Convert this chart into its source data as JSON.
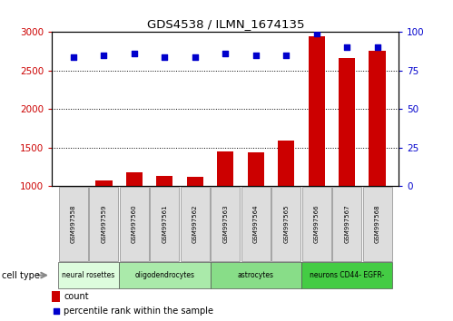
{
  "title": "GDS4538 / ILMN_1674135",
  "samples": [
    "GSM997558",
    "GSM997559",
    "GSM997560",
    "GSM997561",
    "GSM997562",
    "GSM997563",
    "GSM997564",
    "GSM997565",
    "GSM997566",
    "GSM997567",
    "GSM997568"
  ],
  "counts": [
    1005,
    1075,
    1185,
    1130,
    1125,
    1455,
    1445,
    1590,
    2950,
    2660,
    2760
  ],
  "percentiles": [
    84,
    85,
    86,
    84,
    84,
    86,
    85,
    85,
    99,
    90,
    90
  ],
  "bar_color": "#cc0000",
  "dot_color": "#0000cc",
  "ylim_left": [
    1000,
    3000
  ],
  "ylim_right": [
    0,
    100
  ],
  "yticks_left": [
    1000,
    1500,
    2000,
    2500,
    3000
  ],
  "yticks_right": [
    0,
    25,
    50,
    75,
    100
  ],
  "cell_types": [
    {
      "label": "neural rosettes",
      "start": 0,
      "end": 2,
      "color": "#ddfcdd"
    },
    {
      "label": "oligodendrocytes",
      "start": 2,
      "end": 5,
      "color": "#aaeaaa"
    },
    {
      "label": "astrocytes",
      "start": 5,
      "end": 8,
      "color": "#88dd88"
    },
    {
      "label": "neurons CD44- EGFR-",
      "start": 8,
      "end": 11,
      "color": "#44cc44"
    }
  ],
  "legend_count_label": "count",
  "legend_percentile_label": "percentile rank within the sample",
  "cell_type_label": "cell type",
  "bg_color": "#ffffff",
  "plot_bg": "#ffffff",
  "grid_color": "#000000",
  "tick_label_color_left": "#cc0000",
  "tick_label_color_right": "#0000cc",
  "sample_box_color": "#dddddd",
  "bar_width": 0.55
}
